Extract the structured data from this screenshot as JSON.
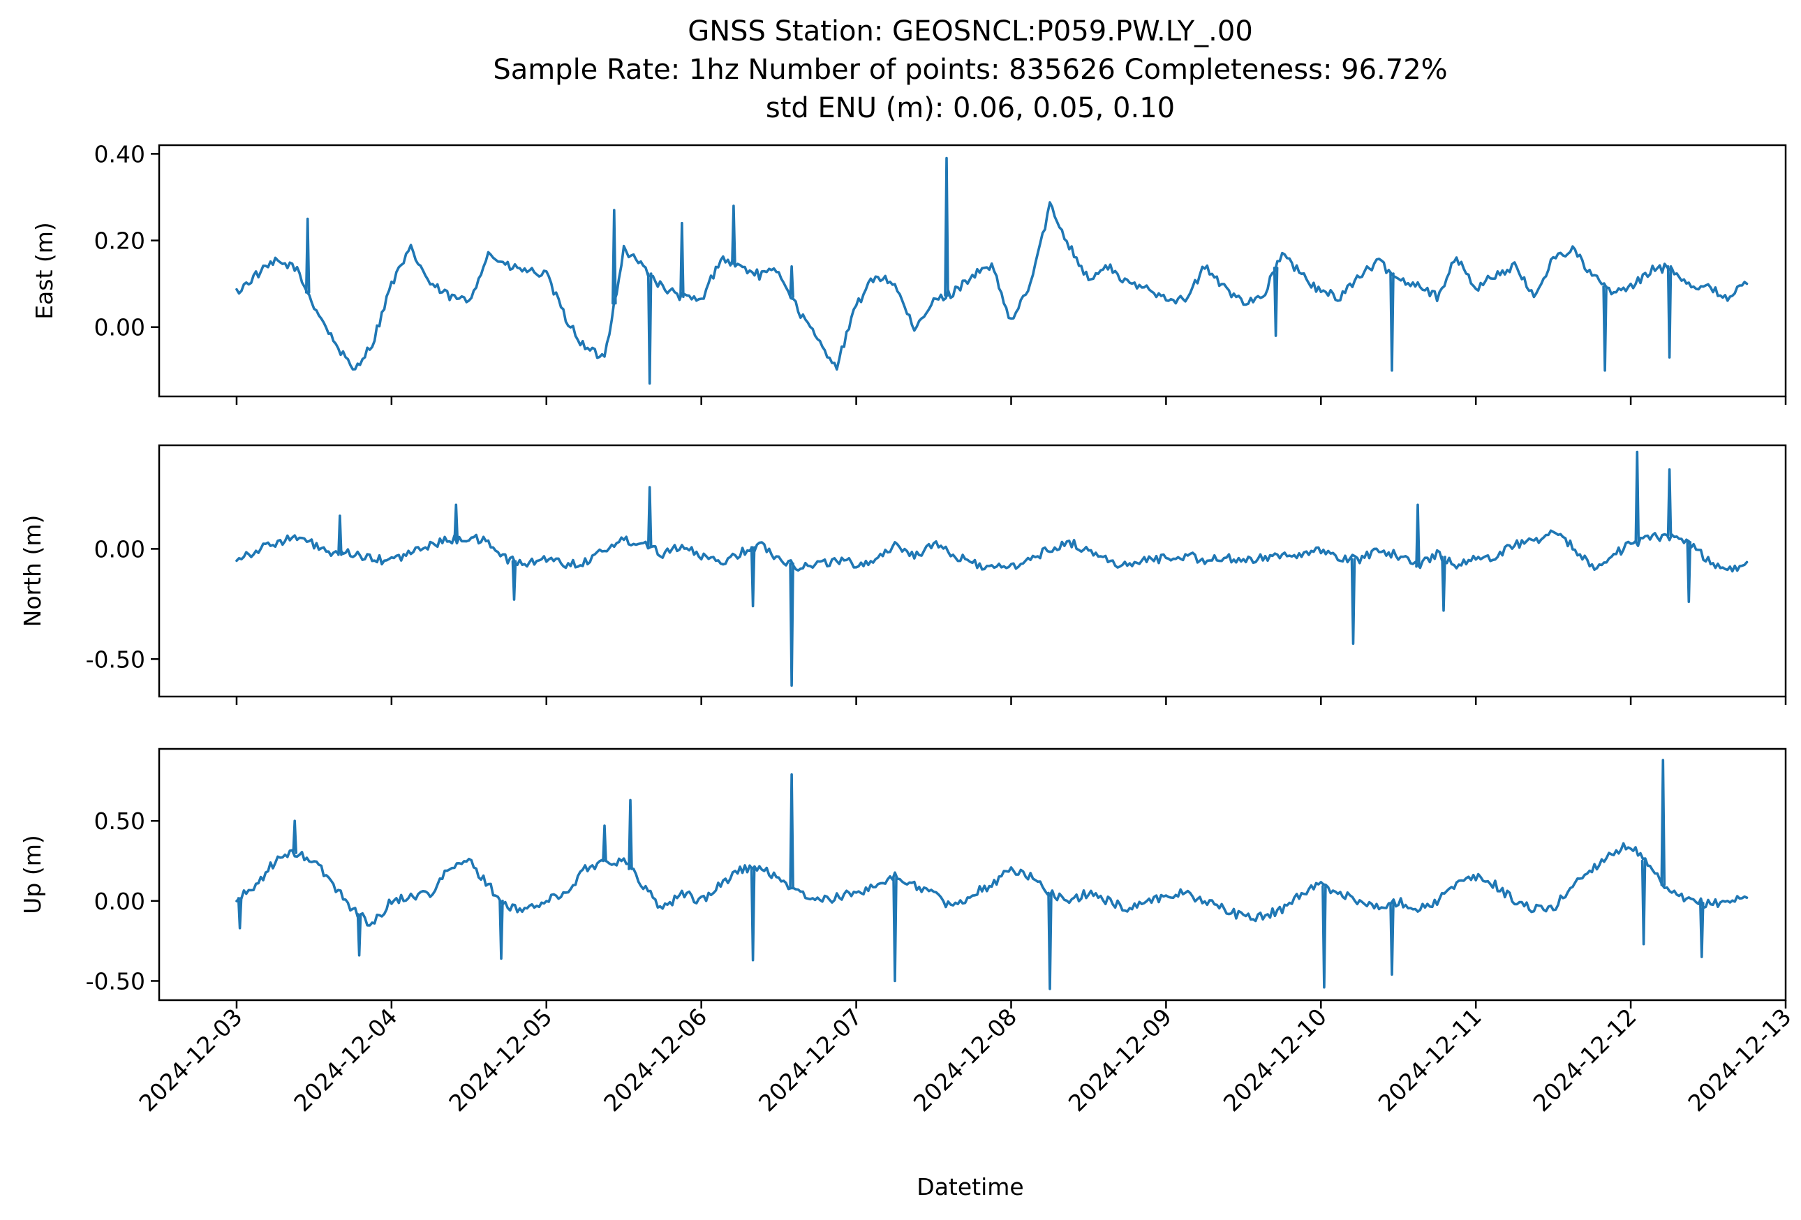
{
  "chart_data": {
    "type": "line",
    "title_lines": [
      "GNSS Station: GEOSNCL:P059.PW.LY_.00",
      "Sample Rate: 1hz   Number of points: 835626    Completeness:  96.72%",
      "std ENU (m):  0.06, 0.05, 0.10"
    ],
    "xlabel": "Datetime",
    "x_ticks": [
      "2024-12-03",
      "2024-12-04",
      "2024-12-05",
      "2024-12-06",
      "2024-12-07",
      "2024-12-08",
      "2024-12-09",
      "2024-12-10",
      "2024-12-11",
      "2024-12-12",
      "2024-12-13"
    ],
    "x_range": [
      "2024-12-02T12:00",
      "2024-12-13T00:00"
    ],
    "data_x_range": [
      "2024-12-03T00:00",
      "2024-12-12T18:00"
    ],
    "line_color": "#1f77b4",
    "grid": false,
    "panels": [
      {
        "ylabel": "East (m)",
        "ylim": [
          -0.16,
          0.42
        ],
        "yticks": [
          0.0,
          0.2,
          0.4
        ],
        "ytick_labels": [
          "0.00",
          "0.20",
          "0.40"
        ],
        "series": [
          {
            "x": [
              "2024-12-03T00:00",
              "2024-12-03T03:00",
              "2024-12-03T06:00",
              "2024-12-03T09:00",
              "2024-12-03T12:00",
              "2024-12-03T15:00",
              "2024-12-03T18:00",
              "2024-12-03T21:00",
              "2024-12-04T00:00",
              "2024-12-04T03:00",
              "2024-12-04T06:00",
              "2024-12-04T09:00",
              "2024-12-04T12:00",
              "2024-12-04T15:00",
              "2024-12-04T18:00",
              "2024-12-04T21:00",
              "2024-12-05T00:00",
              "2024-12-05T03:00",
              "2024-12-05T06:00",
              "2024-12-05T09:00",
              "2024-12-05T12:00",
              "2024-12-05T15:00",
              "2024-12-05T18:00",
              "2024-12-05T21:00",
              "2024-12-06T00:00",
              "2024-12-06T03:00",
              "2024-12-06T06:00",
              "2024-12-06T09:00",
              "2024-12-06T12:00",
              "2024-12-06T15:00",
              "2024-12-06T18:00",
              "2024-12-06T21:00",
              "2024-12-07T00:00",
              "2024-12-07T03:00",
              "2024-12-07T06:00",
              "2024-12-07T09:00",
              "2024-12-07T12:00",
              "2024-12-07T15:00",
              "2024-12-07T18:00",
              "2024-12-07T21:00",
              "2024-12-08T00:00",
              "2024-12-08T03:00",
              "2024-12-08T06:00",
              "2024-12-08T09:00",
              "2024-12-08T12:00",
              "2024-12-08T15:00",
              "2024-12-08T18:00",
              "2024-12-08T21:00",
              "2024-12-09T00:00",
              "2024-12-09T03:00",
              "2024-12-09T06:00",
              "2024-12-09T09:00",
              "2024-12-09T12:00",
              "2024-12-09T15:00",
              "2024-12-09T18:00",
              "2024-12-09T21:00",
              "2024-12-10T00:00",
              "2024-12-10T03:00",
              "2024-12-10T06:00",
              "2024-12-10T09:00",
              "2024-12-10T12:00",
              "2024-12-10T15:00",
              "2024-12-10T18:00",
              "2024-12-10T21:00",
              "2024-12-11T00:00",
              "2024-12-11T03:00",
              "2024-12-11T06:00",
              "2024-12-11T09:00",
              "2024-12-11T12:00",
              "2024-12-11T15:00",
              "2024-12-11T18:00",
              "2024-12-11T21:00",
              "2024-12-12T00:00",
              "2024-12-12T03:00",
              "2024-12-12T06:00",
              "2024-12-12T09:00",
              "2024-12-12T12:00",
              "2024-12-12T15:00",
              "2024-12-12T18:00"
            ],
            "y": [
              0.08,
              0.12,
              0.15,
              0.14,
              0.05,
              -0.03,
              -0.1,
              -0.04,
              0.1,
              0.18,
              0.1,
              0.07,
              0.06,
              0.17,
              0.14,
              0.13,
              0.12,
              0.02,
              -0.05,
              -0.07,
              0.18,
              0.14,
              0.09,
              0.07,
              0.06,
              0.16,
              0.14,
              0.12,
              0.13,
              0.04,
              -0.03,
              -0.09,
              0.05,
              0.12,
              0.1,
              -0.01,
              0.06,
              0.08,
              0.12,
              0.14,
              0.01,
              0.1,
              0.28,
              0.19,
              0.11,
              0.14,
              0.1,
              0.09,
              0.07,
              0.06,
              0.14,
              0.09,
              0.06,
              0.07,
              0.17,
              0.12,
              0.08,
              0.07,
              0.12,
              0.15,
              0.11,
              0.1,
              0.07,
              0.16,
              0.09,
              0.12,
              0.14,
              0.07,
              0.16,
              0.18,
              0.12,
              0.08,
              0.09,
              0.13,
              0.14,
              0.1,
              0.09,
              0.07,
              0.1
            ]
          }
        ],
        "spikes": [
          {
            "x": "2024-12-03T11:00",
            "y": 0.25
          },
          {
            "x": "2024-12-05T10:30",
            "y": 0.27
          },
          {
            "x": "2024-12-05T16:00",
            "y": -0.13
          },
          {
            "x": "2024-12-05T21:00",
            "y": 0.24
          },
          {
            "x": "2024-12-06T05:00",
            "y": 0.28
          },
          {
            "x": "2024-12-06T14:00",
            "y": 0.14
          },
          {
            "x": "2024-12-07T14:00",
            "y": 0.39
          },
          {
            "x": "2024-12-09T17:00",
            "y": -0.02
          },
          {
            "x": "2024-12-10T11:00",
            "y": -0.1
          },
          {
            "x": "2024-12-11T20:00",
            "y": -0.1
          },
          {
            "x": "2024-12-12T06:00",
            "y": -0.07
          }
        ]
      },
      {
        "ylabel": "North (m)",
        "ylim": [
          -0.67,
          0.47
        ],
        "yticks": [
          0.0,
          -0.5
        ],
        "ytick_labels": [
          "0.00",
          "-0.50"
        ],
        "series": [
          {
            "x": [
              "2024-12-03T00:00",
              "2024-12-03T03:00",
              "2024-12-03T06:00",
              "2024-12-03T09:00",
              "2024-12-03T12:00",
              "2024-12-03T15:00",
              "2024-12-03T18:00",
              "2024-12-03T21:00",
              "2024-12-04T00:00",
              "2024-12-04T03:00",
              "2024-12-04T06:00",
              "2024-12-04T09:00",
              "2024-12-04T12:00",
              "2024-12-04T15:00",
              "2024-12-04T18:00",
              "2024-12-04T21:00",
              "2024-12-05T00:00",
              "2024-12-05T03:00",
              "2024-12-05T06:00",
              "2024-12-05T09:00",
              "2024-12-05T12:00",
              "2024-12-05T15:00",
              "2024-12-05T18:00",
              "2024-12-05T21:00",
              "2024-12-06T00:00",
              "2024-12-06T03:00",
              "2024-12-06T06:00",
              "2024-12-06T09:00",
              "2024-12-06T12:00",
              "2024-12-06T15:00",
              "2024-12-06T18:00",
              "2024-12-06T21:00",
              "2024-12-07T00:00",
              "2024-12-07T03:00",
              "2024-12-07T06:00",
              "2024-12-07T09:00",
              "2024-12-07T12:00",
              "2024-12-07T15:00",
              "2024-12-07T18:00",
              "2024-12-07T21:00",
              "2024-12-08T00:00",
              "2024-12-08T03:00",
              "2024-12-08T06:00",
              "2024-12-08T09:00",
              "2024-12-08T12:00",
              "2024-12-08T15:00",
              "2024-12-08T18:00",
              "2024-12-08T21:00",
              "2024-12-09T00:00",
              "2024-12-09T03:00",
              "2024-12-09T06:00",
              "2024-12-09T09:00",
              "2024-12-09T12:00",
              "2024-12-09T15:00",
              "2024-12-09T18:00",
              "2024-12-09T21:00",
              "2024-12-10T00:00",
              "2024-12-10T03:00",
              "2024-12-10T06:00",
              "2024-12-10T09:00",
              "2024-12-10T12:00",
              "2024-12-10T15:00",
              "2024-12-10T18:00",
              "2024-12-10T21:00",
              "2024-12-11T00:00",
              "2024-12-11T03:00",
              "2024-12-11T06:00",
              "2024-12-11T09:00",
              "2024-12-11T12:00",
              "2024-12-11T15:00",
              "2024-12-11T18:00",
              "2024-12-11T21:00",
              "2024-12-12T00:00",
              "2024-12-12T03:00",
              "2024-12-12T06:00",
              "2024-12-12T09:00",
              "2024-12-12T12:00",
              "2024-12-12T15:00",
              "2024-12-12T18:00"
            ],
            "y": [
              -0.04,
              -0.01,
              0.03,
              0.05,
              0.02,
              -0.03,
              -0.02,
              -0.05,
              -0.05,
              -0.02,
              0.02,
              0.04,
              0.05,
              0.03,
              -0.05,
              -0.07,
              -0.04,
              -0.07,
              -0.06,
              0.0,
              0.04,
              0.03,
              -0.02,
              0.02,
              -0.04,
              -0.06,
              -0.02,
              0.02,
              -0.04,
              -0.08,
              -0.07,
              -0.05,
              -0.07,
              -0.05,
              0.02,
              -0.03,
              0.02,
              -0.03,
              -0.06,
              -0.09,
              -0.08,
              -0.05,
              0.0,
              0.03,
              -0.01,
              -0.05,
              -0.08,
              -0.05,
              -0.04,
              -0.03,
              -0.05,
              -0.04,
              -0.06,
              -0.04,
              -0.02,
              -0.03,
              -0.01,
              -0.04,
              -0.05,
              0.0,
              -0.03,
              -0.08,
              -0.02,
              -0.07,
              -0.05,
              -0.03,
              0.02,
              0.04,
              0.07,
              0.01,
              -0.08,
              -0.03,
              0.02,
              0.05,
              0.06,
              0.03,
              -0.05,
              -0.1,
              -0.06
            ]
          }
        ],
        "spikes": [
          {
            "x": "2024-12-03T16:00",
            "y": 0.15
          },
          {
            "x": "2024-12-04T10:00",
            "y": 0.2
          },
          {
            "x": "2024-12-04T19:00",
            "y": -0.23
          },
          {
            "x": "2024-12-05T16:00",
            "y": 0.28
          },
          {
            "x": "2024-12-06T08:00",
            "y": -0.26
          },
          {
            "x": "2024-12-06T14:00",
            "y": -0.62
          },
          {
            "x": "2024-12-10T05:00",
            "y": -0.43
          },
          {
            "x": "2024-12-10T15:00",
            "y": 0.2
          },
          {
            "x": "2024-12-10T19:00",
            "y": -0.28
          },
          {
            "x": "2024-12-12T01:00",
            "y": 0.44
          },
          {
            "x": "2024-12-12T06:00",
            "y": 0.36
          },
          {
            "x": "2024-12-12T09:00",
            "y": -0.24
          }
        ]
      },
      {
        "ylabel": "Up (m)",
        "ylim": [
          -0.62,
          0.95
        ],
        "yticks": [
          0.5,
          0.0,
          -0.5
        ],
        "ytick_labels": [
          "0.50",
          "0.00",
          "-0.50"
        ],
        "series": [
          {
            "x": [
              "2024-12-03T00:00",
              "2024-12-03T03:00",
              "2024-12-03T06:00",
              "2024-12-03T09:00",
              "2024-12-03T12:00",
              "2024-12-03T15:00",
              "2024-12-03T18:00",
              "2024-12-03T21:00",
              "2024-12-04T00:00",
              "2024-12-04T03:00",
              "2024-12-04T06:00",
              "2024-12-04T09:00",
              "2024-12-04T12:00",
              "2024-12-04T15:00",
              "2024-12-04T18:00",
              "2024-12-04T21:00",
              "2024-12-05T00:00",
              "2024-12-05T03:00",
              "2024-12-05T06:00",
              "2024-12-05T09:00",
              "2024-12-05T12:00",
              "2024-12-05T15:00",
              "2024-12-05T18:00",
              "2024-12-05T21:00",
              "2024-12-06T00:00",
              "2024-12-06T03:00",
              "2024-12-06T06:00",
              "2024-12-06T09:00",
              "2024-12-06T12:00",
              "2024-12-06T15:00",
              "2024-12-06T18:00",
              "2024-12-06T21:00",
              "2024-12-07T00:00",
              "2024-12-07T03:00",
              "2024-12-07T06:00",
              "2024-12-07T09:00",
              "2024-12-07T12:00",
              "2024-12-07T15:00",
              "2024-12-07T18:00",
              "2024-12-07T21:00",
              "2024-12-08T00:00",
              "2024-12-08T03:00",
              "2024-12-08T06:00",
              "2024-12-08T09:00",
              "2024-12-08T12:00",
              "2024-12-08T15:00",
              "2024-12-08T18:00",
              "2024-12-08T21:00",
              "2024-12-09T00:00",
              "2024-12-09T03:00",
              "2024-12-09T06:00",
              "2024-12-09T09:00",
              "2024-12-09T12:00",
              "2024-12-09T15:00",
              "2024-12-09T18:00",
              "2024-12-09T21:00",
              "2024-12-10T00:00",
              "2024-12-10T03:00",
              "2024-12-10T06:00",
              "2024-12-10T09:00",
              "2024-12-10T12:00",
              "2024-12-10T15:00",
              "2024-12-10T18:00",
              "2024-12-10T21:00",
              "2024-12-11T00:00",
              "2024-12-11T03:00",
              "2024-12-11T06:00",
              "2024-12-11T09:00",
              "2024-12-11T12:00",
              "2024-12-11T15:00",
              "2024-12-11T18:00",
              "2024-12-11T21:00",
              "2024-12-12T00:00",
              "2024-12-12T03:00",
              "2024-12-12T06:00",
              "2024-12-12T09:00",
              "2024-12-12T12:00",
              "2024-12-12T15:00",
              "2024-12-12T18:00"
            ],
            "y": [
              0.0,
              0.1,
              0.25,
              0.3,
              0.25,
              0.1,
              -0.05,
              -0.15,
              0.0,
              0.03,
              0.05,
              0.2,
              0.25,
              0.1,
              -0.05,
              -0.05,
              0.0,
              0.05,
              0.2,
              0.25,
              0.25,
              0.1,
              -0.05,
              0.05,
              0.0,
              0.1,
              0.2,
              0.2,
              0.15,
              0.05,
              0.0,
              0.02,
              0.05,
              0.1,
              0.15,
              0.1,
              0.05,
              -0.05,
              0.05,
              0.1,
              0.2,
              0.15,
              0.05,
              0.0,
              0.05,
              0.0,
              -0.05,
              0.0,
              0.03,
              0.05,
              0.0,
              -0.05,
              -0.1,
              -0.1,
              -0.05,
              0.05,
              0.1,
              0.05,
              0.0,
              -0.05,
              0.0,
              -0.05,
              0.0,
              0.1,
              0.15,
              0.1,
              0.0,
              -0.05,
              -0.05,
              0.1,
              0.2,
              0.3,
              0.35,
              0.2,
              0.05,
              0.0,
              -0.02,
              0.0,
              0.02
            ]
          }
        ],
        "spikes": [
          {
            "x": "2024-12-03T00:30",
            "y": -0.17
          },
          {
            "x": "2024-12-03T09:00",
            "y": 0.5
          },
          {
            "x": "2024-12-03T19:00",
            "y": -0.34
          },
          {
            "x": "2024-12-04T17:00",
            "y": -0.36
          },
          {
            "x": "2024-12-05T09:00",
            "y": 0.47
          },
          {
            "x": "2024-12-05T13:00",
            "y": 0.63
          },
          {
            "x": "2024-12-06T08:00",
            "y": -0.37
          },
          {
            "x": "2024-12-06T14:00",
            "y": 0.79
          },
          {
            "x": "2024-12-07T06:00",
            "y": -0.5
          },
          {
            "x": "2024-12-08T06:00",
            "y": -0.55
          },
          {
            "x": "2024-12-10T00:30",
            "y": -0.54
          },
          {
            "x": "2024-12-10T11:00",
            "y": -0.46
          },
          {
            "x": "2024-12-12T02:00",
            "y": -0.27
          },
          {
            "x": "2024-12-12T05:00",
            "y": 0.88
          },
          {
            "x": "2024-12-12T11:00",
            "y": -0.35
          }
        ]
      }
    ]
  }
}
